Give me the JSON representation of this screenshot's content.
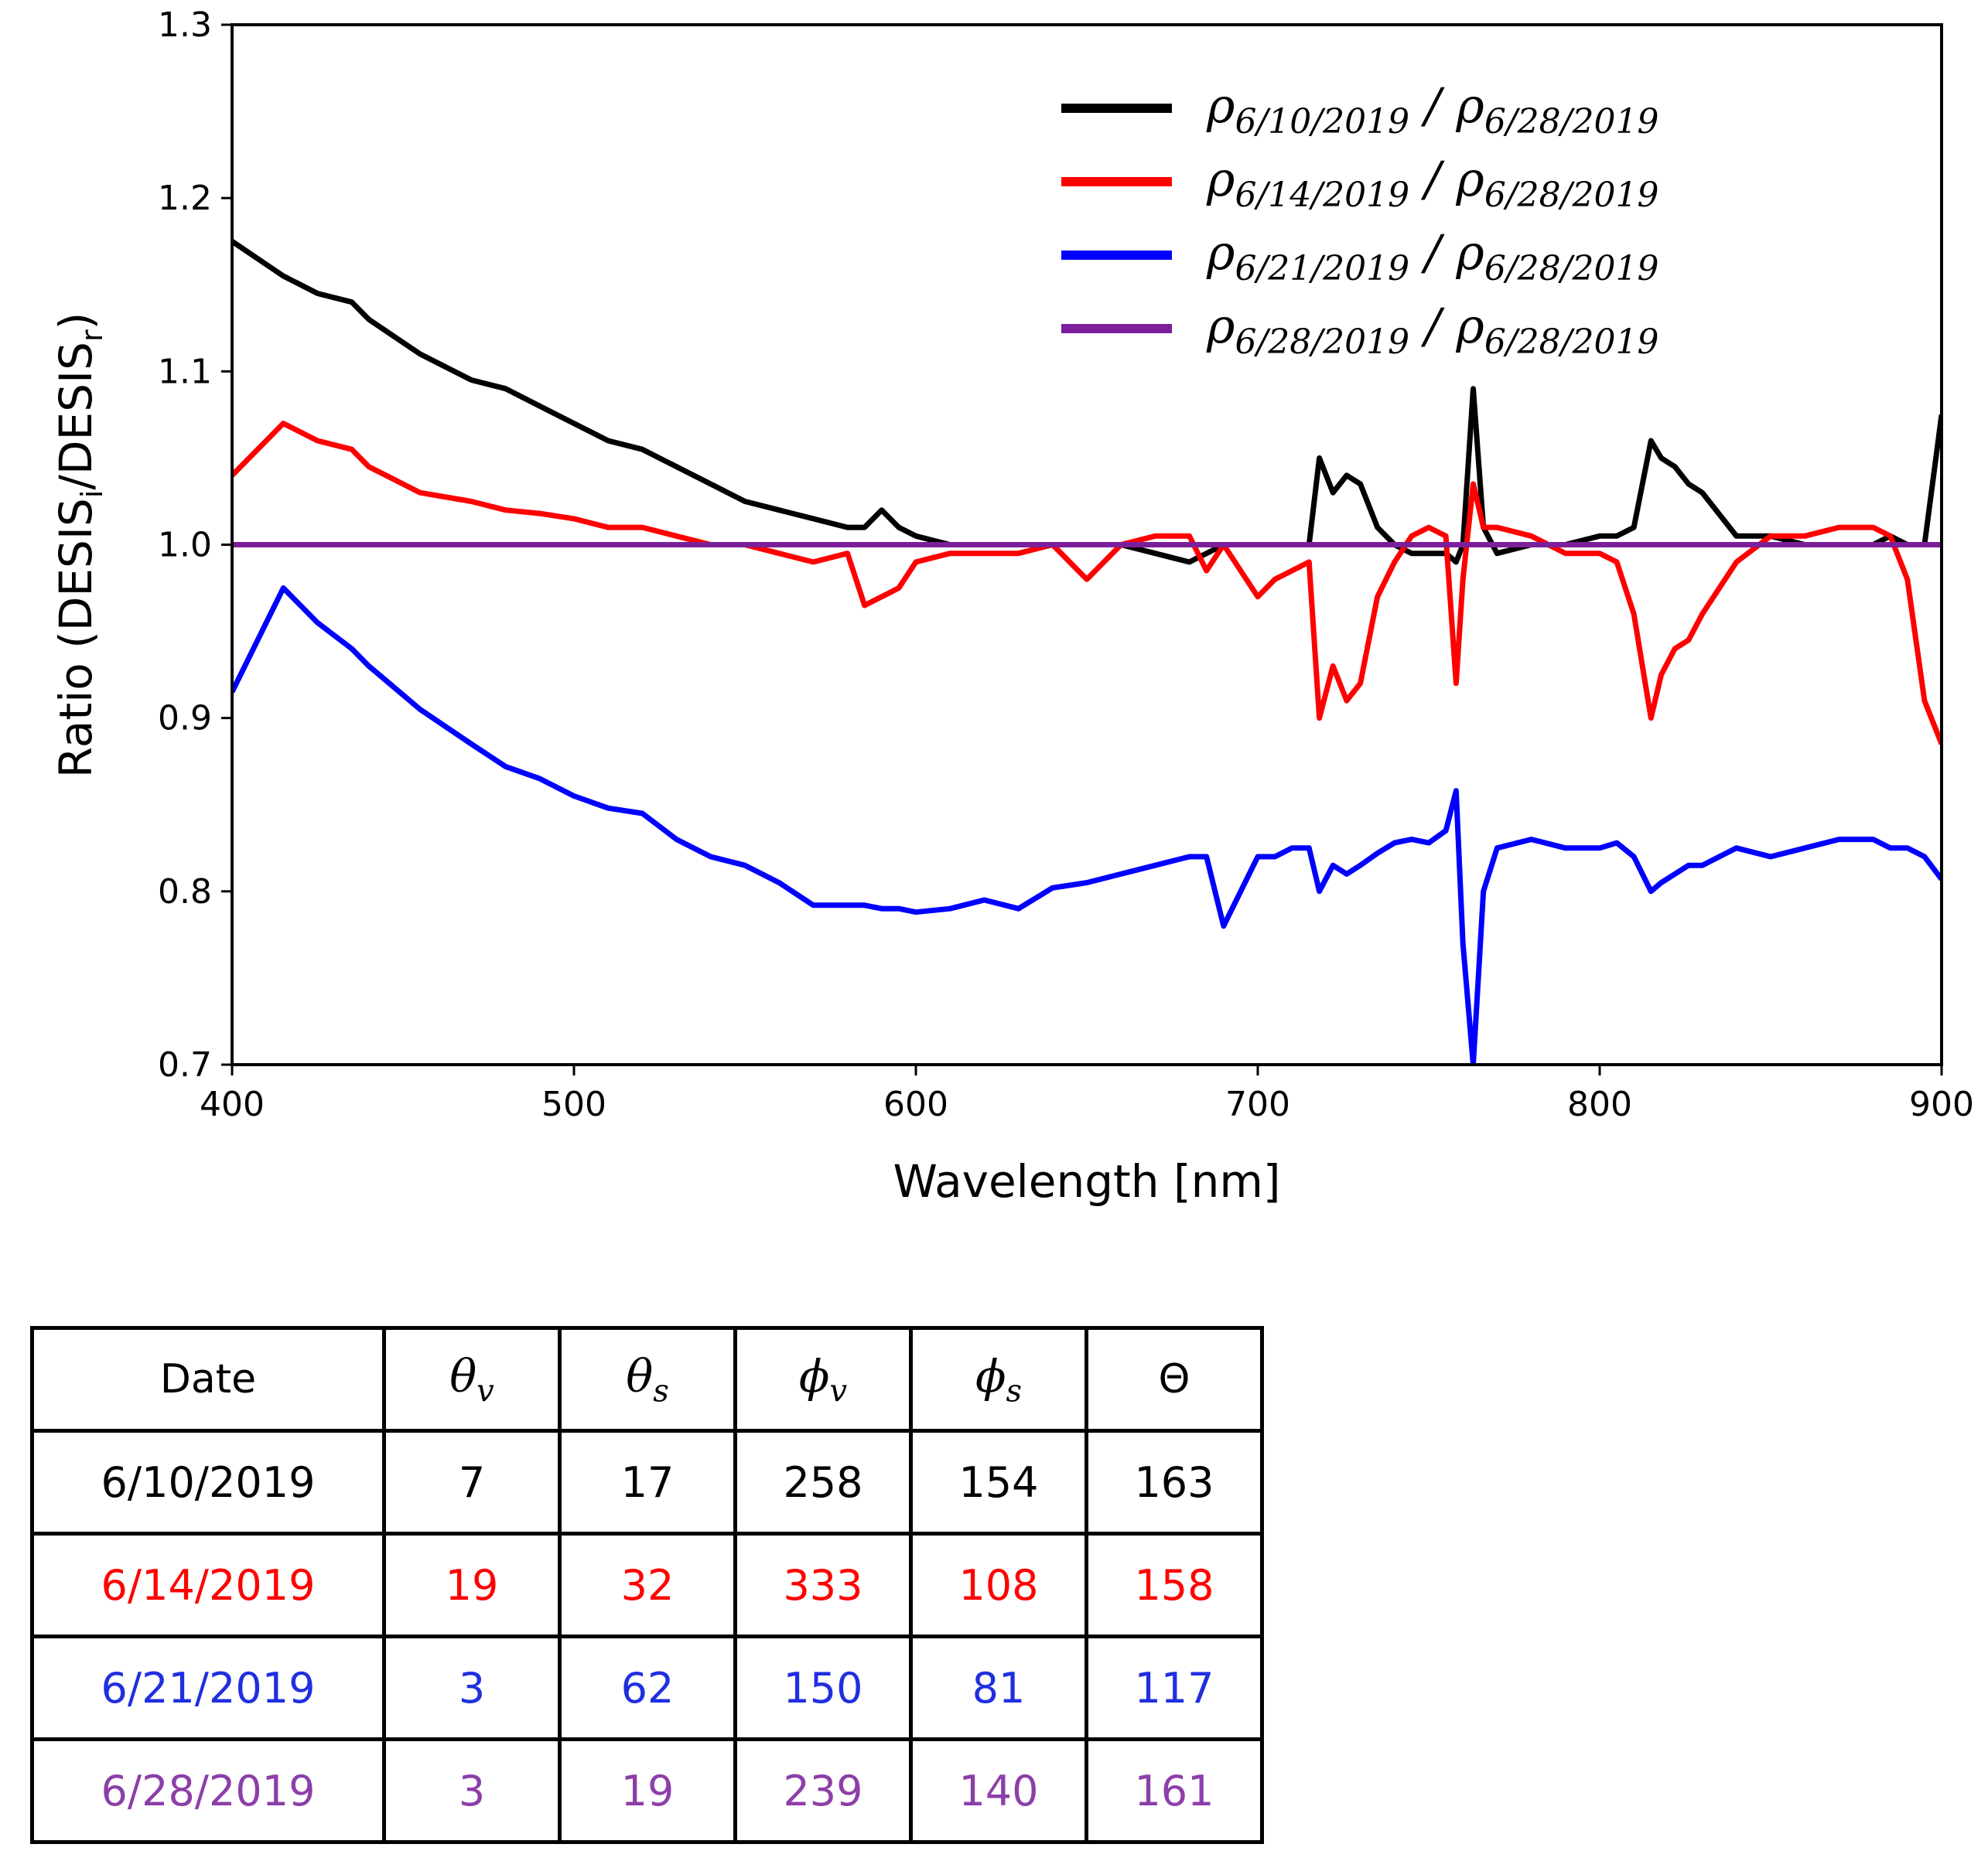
{
  "chart_data": {
    "type": "line",
    "title": "",
    "xlabel": "Wavelength [nm]",
    "ylabel_main": "Ratio (DESIS",
    "ylabel_sub_i": "i",
    "ylabel_mid": "/DESIS",
    "ylabel_sub_r": "r",
    "ylabel_end": ")",
    "xlim": [
      400,
      900
    ],
    "ylim": [
      0.7,
      1.3
    ],
    "xticks": [
      "400",
      "500",
      "600",
      "700",
      "800",
      "900"
    ],
    "yticks": [
      "0.7",
      "0.8",
      "0.9",
      "1.0",
      "1.1",
      "1.2",
      "1.3"
    ],
    "legend_position": "top-right",
    "x": [
      400,
      415,
      425,
      435,
      440,
      455,
      470,
      480,
      490,
      500,
      510,
      520,
      530,
      540,
      550,
      560,
      570,
      580,
      585,
      590,
      595,
      600,
      610,
      620,
      630,
      640,
      650,
      660,
      670,
      680,
      685,
      690,
      700,
      705,
      710,
      715,
      718,
      722,
      726,
      730,
      735,
      740,
      745,
      750,
      755,
      758,
      760,
      763,
      766,
      770,
      780,
      790,
      800,
      805,
      810,
      815,
      818,
      822,
      826,
      830,
      840,
      850,
      860,
      870,
      880,
      885,
      890,
      895,
      900
    ],
    "series": [
      {
        "name": "6/10/2019",
        "legend_num": "6/10/2019",
        "legend_den": "6/28/2019",
        "color": "#000000",
        "values": [
          1.175,
          1.155,
          1.145,
          1.14,
          1.13,
          1.11,
          1.095,
          1.09,
          1.08,
          1.07,
          1.06,
          1.055,
          1.045,
          1.035,
          1.025,
          1.02,
          1.015,
          1.01,
          1.01,
          1.02,
          1.01,
          1.005,
          1.0,
          1.0,
          1.0,
          1.0,
          1.0,
          1.0,
          0.995,
          0.99,
          0.995,
          1.0,
          1.0,
          1.0,
          1.0,
          1.0,
          1.05,
          1.03,
          1.04,
          1.035,
          1.01,
          1.0,
          0.995,
          0.995,
          0.995,
          0.99,
          1.0,
          1.09,
          1.01,
          0.995,
          1.0,
          1.0,
          1.005,
          1.005,
          1.01,
          1.06,
          1.05,
          1.045,
          1.035,
          1.03,
          1.005,
          1.005,
          1.0,
          1.0,
          1.0,
          1.005,
          1.0,
          1.0,
          1.075
        ]
      },
      {
        "name": "6/14/2019",
        "legend_num": "6/14/2019",
        "legend_den": "6/28/2019",
        "color": "#ff0000",
        "values": [
          1.04,
          1.07,
          1.06,
          1.055,
          1.045,
          1.03,
          1.025,
          1.02,
          1.018,
          1.015,
          1.01,
          1.01,
          1.005,
          1.0,
          1.0,
          0.995,
          0.99,
          0.995,
          0.965,
          0.97,
          0.975,
          0.99,
          0.995,
          0.995,
          0.995,
          1.0,
          0.98,
          1.0,
          1.005,
          1.005,
          0.985,
          1.0,
          0.97,
          0.98,
          0.985,
          0.99,
          0.9,
          0.93,
          0.91,
          0.92,
          0.97,
          0.99,
          1.005,
          1.01,
          1.005,
          0.92,
          0.98,
          1.035,
          1.01,
          1.01,
          1.005,
          0.995,
          0.995,
          0.99,
          0.96,
          0.9,
          0.925,
          0.94,
          0.945,
          0.96,
          0.99,
          1.005,
          1.005,
          1.01,
          1.01,
          1.005,
          0.98,
          0.91,
          0.885
        ]
      },
      {
        "name": "6/21/2019",
        "legend_num": "6/21/2019",
        "legend_den": "6/28/2019",
        "color": "#0000ff",
        "values": [
          0.915,
          0.975,
          0.955,
          0.94,
          0.93,
          0.905,
          0.885,
          0.872,
          0.865,
          0.855,
          0.848,
          0.845,
          0.83,
          0.82,
          0.815,
          0.805,
          0.792,
          0.792,
          0.792,
          0.79,
          0.79,
          0.788,
          0.79,
          0.795,
          0.79,
          0.802,
          0.805,
          0.81,
          0.815,
          0.82,
          0.82,
          0.78,
          0.82,
          0.82,
          0.825,
          0.825,
          0.8,
          0.815,
          0.81,
          0.815,
          0.822,
          0.828,
          0.83,
          0.828,
          0.835,
          0.858,
          0.77,
          0.7,
          0.8,
          0.825,
          0.83,
          0.825,
          0.825,
          0.828,
          0.82,
          0.8,
          0.805,
          0.81,
          0.815,
          0.815,
          0.825,
          0.82,
          0.825,
          0.83,
          0.83,
          0.825,
          0.825,
          0.82,
          0.807
        ]
      },
      {
        "name": "6/28/2019",
        "legend_num": "6/28/2019",
        "legend_den": "6/28/2019",
        "color": "#7b1f9a",
        "values": [
          1.0,
          1.0,
          1.0,
          1.0,
          1.0,
          1.0,
          1.0,
          1.0,
          1.0,
          1.0,
          1.0,
          1.0,
          1.0,
          1.0,
          1.0,
          1.0,
          1.0,
          1.0,
          1.0,
          1.0,
          1.0,
          1.0,
          1.0,
          1.0,
          1.0,
          1.0,
          1.0,
          1.0,
          1.0,
          1.0,
          1.0,
          1.0,
          1.0,
          1.0,
          1.0,
          1.0,
          1.0,
          1.0,
          1.0,
          1.0,
          1.0,
          1.0,
          1.0,
          1.0,
          1.0,
          1.0,
          1.0,
          1.0,
          1.0,
          1.0,
          1.0,
          1.0,
          1.0,
          1.0,
          1.0,
          1.0,
          1.0,
          1.0,
          1.0,
          1.0,
          1.0,
          1.0,
          1.0,
          1.0,
          1.0,
          1.0,
          1.0,
          1.0,
          1.0
        ]
      }
    ]
  },
  "table": {
    "header": {
      "date": "Date",
      "theta_v_sym": "θ",
      "theta_v_sub": "v",
      "theta_s_sym": "θ",
      "theta_s_sub": "s",
      "phi_v_sym": "ϕ",
      "phi_v_sub": "v",
      "phi_s_sym": "ϕ",
      "phi_s_sub": "s",
      "big_theta": "Θ"
    },
    "rows": [
      {
        "date": "6/10/2019",
        "theta_v": "7",
        "theta_s": "17",
        "phi_v": "258",
        "phi_s": "154",
        "Theta": "163",
        "color": "#000000"
      },
      {
        "date": "6/14/2019",
        "theta_v": "19",
        "theta_s": "32",
        "phi_v": "333",
        "phi_s": "108",
        "Theta": "158",
        "color": "#ff0000"
      },
      {
        "date": "6/21/2019",
        "theta_v": "3",
        "theta_s": "62",
        "phi_v": "150",
        "phi_s": "81",
        "Theta": "117",
        "color": "#1f2fe0"
      },
      {
        "date": "6/28/2019",
        "theta_v": "3",
        "theta_s": "19",
        "phi_v": "239",
        "phi_s": "140",
        "Theta": "161",
        "color": "#8c3fa8"
      }
    ]
  }
}
